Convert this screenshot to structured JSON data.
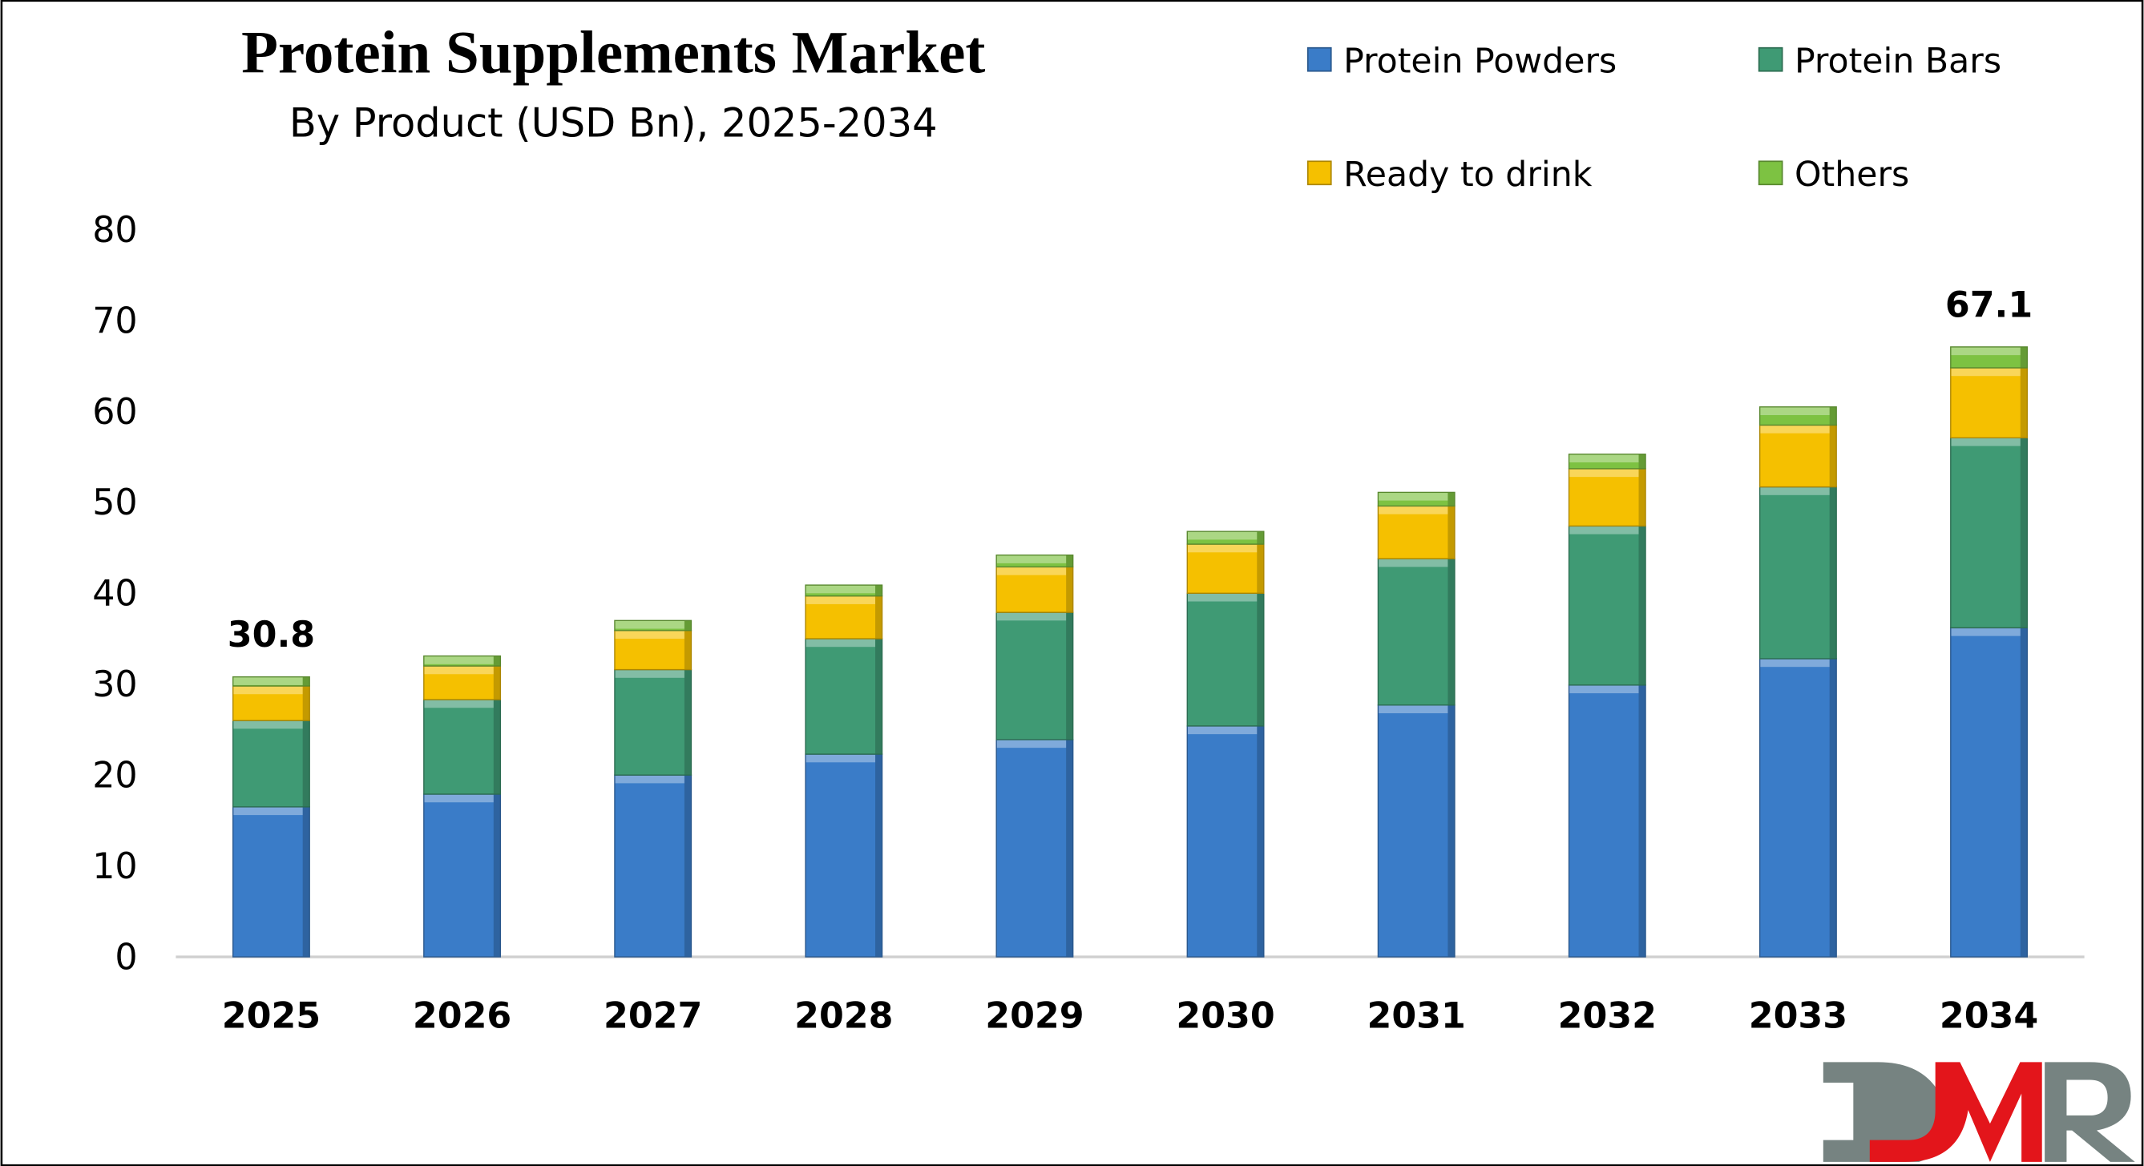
{
  "chart_data": {
    "type": "bar",
    "stacked": true,
    "title": "Protein Supplements Market",
    "subtitle": "By Product (USD Bn), 2025-2034",
    "categories": [
      "2025",
      "2026",
      "2027",
      "2028",
      "2029",
      "2030",
      "2031",
      "2032",
      "2033",
      "2034"
    ],
    "series": [
      {
        "name": "Protein Powders",
        "color": "#3A7CC8",
        "values": [
          16.5,
          17.9,
          20.0,
          22.3,
          23.9,
          25.4,
          27.7,
          29.9,
          32.8,
          36.2
        ]
      },
      {
        "name": "Protein Bars",
        "color": "#3F9A74",
        "values": [
          9.5,
          10.4,
          11.6,
          12.7,
          14.0,
          14.6,
          16.1,
          17.5,
          18.9,
          20.9
        ]
      },
      {
        "name": "Ready to drink",
        "color": "#F5C000",
        "values": [
          3.8,
          3.7,
          4.3,
          4.7,
          5.0,
          5.4,
          5.8,
          6.3,
          6.8,
          7.7
        ]
      },
      {
        "name": "Others",
        "color": "#7DC242",
        "values": [
          1.0,
          1.1,
          1.1,
          1.2,
          1.3,
          1.4,
          1.5,
          1.6,
          2.0,
          2.3
        ]
      }
    ],
    "data_labels": [
      {
        "category": "2025",
        "text": "30.8",
        "value": 30.8
      },
      {
        "category": "2034",
        "text": "67.1",
        "value": 67.1
      }
    ],
    "ylim": [
      0,
      80
    ],
    "yticks": [
      0,
      10,
      20,
      30,
      40,
      50,
      60,
      70,
      80
    ],
    "xlabel": "",
    "ylabel": "",
    "grid": false,
    "legend_position": "top-right"
  },
  "logo": {
    "text": "DMR",
    "colors": {
      "gray": "#768381",
      "red": "#E3151B"
    }
  }
}
